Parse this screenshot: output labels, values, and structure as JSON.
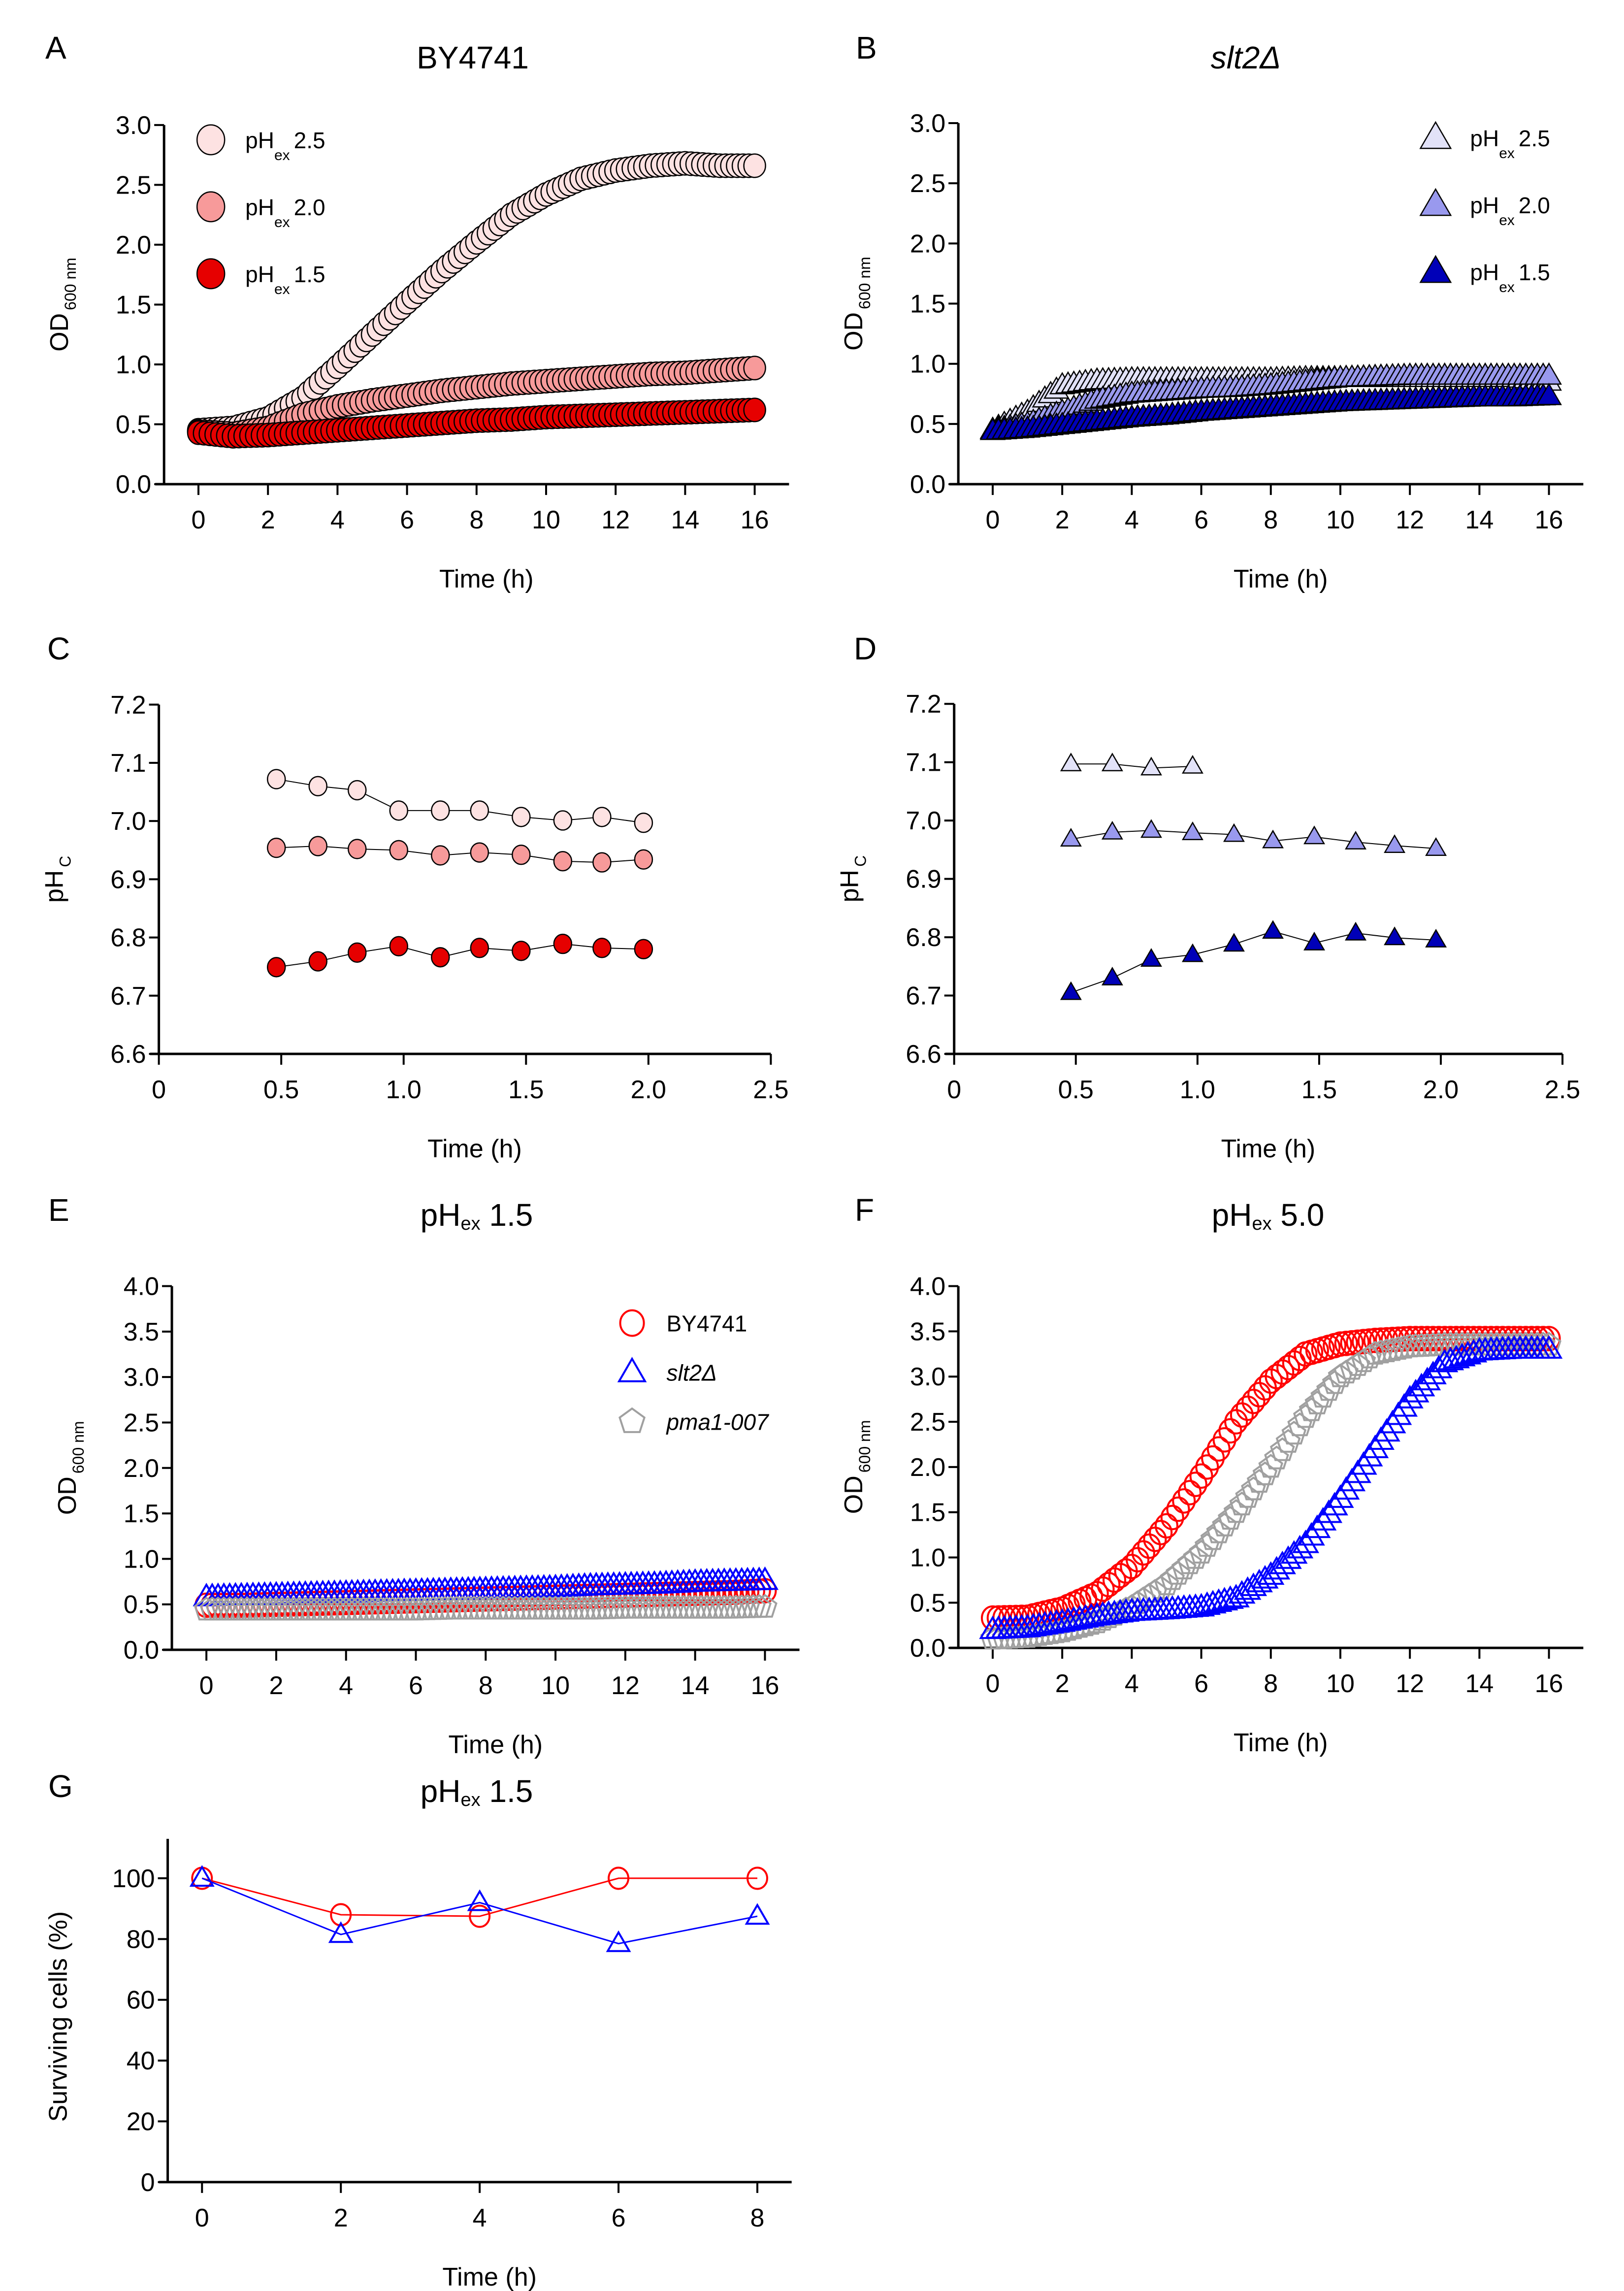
{
  "figure": {
    "panels": [
      "A",
      "B",
      "C",
      "D",
      "E",
      "F",
      "G"
    ]
  },
  "chart_data": [
    {
      "id": "A",
      "panel_letter": "A",
      "type": "scatter",
      "title": "BY4741",
      "title_italic": false,
      "xlabel": "Time (h)",
      "ylabel": "OD",
      "ylabel_sub": "600 nm",
      "xlim": [
        -1,
        18
      ],
      "ylim": [
        0,
        3.0
      ],
      "xticks": [
        0,
        2,
        4,
        6,
        8,
        10,
        12,
        14,
        16
      ],
      "xtick_labels": [
        "0",
        "2",
        "4",
        "6",
        "8",
        "10",
        "12",
        "14",
        "16"
      ],
      "yticks": [
        0,
        0.5,
        1.0,
        1.5,
        2.0,
        2.5,
        3.0
      ],
      "ytick_labels": [
        "0.0",
        "0.5",
        "1.0",
        "1.5",
        "2.0",
        "2.5",
        "3.0"
      ],
      "marker": "circle",
      "dense": true,
      "legend_position": "top-left",
      "x": [
        0,
        1,
        2,
        3,
        4,
        5,
        6,
        7,
        8,
        9,
        10,
        11,
        12,
        13,
        14,
        15,
        16
      ],
      "series": [
        {
          "name": "pHex 2.5",
          "label_main": "pH",
          "label_sub": "ex",
          "label_value": "2.5",
          "fill": "#fde2e2",
          "stroke": "#000000",
          "values": [
            0.45,
            0.47,
            0.55,
            0.72,
            0.98,
            1.25,
            1.52,
            1.78,
            2.02,
            2.25,
            2.42,
            2.55,
            2.62,
            2.66,
            2.68,
            2.66,
            2.66
          ]
        },
        {
          "name": "pHex 2.0",
          "label_main": "pH",
          "label_sub": "ex",
          "label_value": "2.0",
          "fill": "#f79a9a",
          "stroke": "#000000",
          "values": [
            0.44,
            0.42,
            0.47,
            0.58,
            0.65,
            0.7,
            0.74,
            0.78,
            0.81,
            0.84,
            0.86,
            0.88,
            0.9,
            0.92,
            0.93,
            0.95,
            0.97
          ]
        },
        {
          "name": "pHex 1.5",
          "label_main": "pH",
          "label_sub": "ex",
          "label_value": "1.5",
          "fill": "#e60000",
          "stroke": "#000000",
          "values": [
            0.43,
            0.4,
            0.41,
            0.43,
            0.45,
            0.47,
            0.49,
            0.51,
            0.53,
            0.54,
            0.56,
            0.57,
            0.58,
            0.59,
            0.6,
            0.61,
            0.62
          ]
        }
      ]
    },
    {
      "id": "B",
      "panel_letter": "B",
      "type": "scatter",
      "title": "slt2Δ",
      "title_italic": true,
      "xlabel": "Time (h)",
      "ylabel": "OD",
      "ylabel_sub": "600 nm",
      "xlim": [
        -1,
        18
      ],
      "ylim": [
        0,
        3.0
      ],
      "xticks": [
        0,
        2,
        4,
        6,
        8,
        10,
        12,
        14,
        16
      ],
      "xtick_labels": [
        "0",
        "2",
        "4",
        "6",
        "8",
        "10",
        "12",
        "14",
        "16"
      ],
      "yticks": [
        0,
        0.5,
        1.0,
        1.5,
        2.0,
        2.5,
        3.0
      ],
      "ytick_labels": [
        "0.0",
        "0.5",
        "1.0",
        "1.5",
        "2.0",
        "2.5",
        "3.0"
      ],
      "marker": "triangle",
      "dense": true,
      "legend_position": "top-right",
      "x": [
        0,
        1,
        2,
        3,
        4,
        5,
        6,
        7,
        8,
        9,
        10,
        11,
        12,
        13,
        14,
        15,
        16
      ],
      "series": [
        {
          "name": "pHex 2.5",
          "label_main": "pH",
          "label_sub": "ex",
          "label_value": "2.5",
          "fill": "#e2e2f8",
          "stroke": "#000000",
          "values": [
            0.45,
            0.6,
            0.82,
            0.86,
            0.87,
            0.87,
            0.87,
            0.87,
            0.87,
            0.88,
            0.88,
            0.88,
            0.88,
            0.88,
            0.88,
            0.88,
            0.85
          ]
        },
        {
          "name": "pHex 2.0",
          "label_main": "pH",
          "label_sub": "ex",
          "label_value": "2.0",
          "fill": "#9999ee",
          "stroke": "#000000",
          "values": [
            0.45,
            0.5,
            0.6,
            0.7,
            0.75,
            0.77,
            0.79,
            0.8,
            0.82,
            0.85,
            0.88,
            0.89,
            0.9,
            0.9,
            0.9,
            0.9,
            0.9
          ]
        },
        {
          "name": "pHex 1.5",
          "label_main": "pH",
          "label_sub": "ex",
          "label_value": "1.5",
          "fill": "#0000b8",
          "stroke": "#000000",
          "values": [
            0.44,
            0.46,
            0.49,
            0.52,
            0.55,
            0.57,
            0.6,
            0.62,
            0.64,
            0.66,
            0.68,
            0.69,
            0.7,
            0.71,
            0.72,
            0.72,
            0.73
          ]
        }
      ]
    },
    {
      "id": "C",
      "panel_letter": "C",
      "type": "line",
      "title": "",
      "xlabel": "Time (h)",
      "ylabel": "pH",
      "ylabel_sub": "C",
      "xlim": [
        0,
        2.5
      ],
      "ylim": [
        6.6,
        7.2
      ],
      "xticks": [
        0,
        0.5,
        1.0,
        1.5,
        2.0,
        2.5
      ],
      "xtick_labels": [
        "0",
        "0.5",
        "1.0",
        "1.5",
        "2.0",
        "2.5"
      ],
      "yticks": [
        6.6,
        6.7,
        6.8,
        6.9,
        7.0,
        7.1,
        7.2
      ],
      "ytick_labels": [
        "6.6",
        "6.7",
        "6.8",
        "6.9",
        "7.0",
        "7.1",
        "7.2"
      ],
      "marker": "circle",
      "dense": false,
      "x": [
        0.48,
        0.65,
        0.81,
        0.98,
        1.15,
        1.31,
        1.48,
        1.65,
        1.81,
        1.98
      ],
      "series": [
        {
          "name": "pHex 2.5",
          "fill": "#fde2e2",
          "stroke": "#000000",
          "values": [
            7.072,
            7.06,
            7.053,
            7.018,
            7.018,
            7.018,
            7.007,
            7.001,
            7.007,
            6.997
          ]
        },
        {
          "name": "pHex 2.0",
          "fill": "#f79a9a",
          "stroke": "#000000",
          "values": [
            6.954,
            6.957,
            6.952,
            6.95,
            6.941,
            6.946,
            6.942,
            6.931,
            6.929,
            6.934
          ]
        },
        {
          "name": "pHex 1.5",
          "fill": "#e60000",
          "stroke": "#000000",
          "values": [
            6.749,
            6.759,
            6.774,
            6.785,
            6.766,
            6.782,
            6.777,
            6.789,
            6.782,
            6.78
          ]
        }
      ]
    },
    {
      "id": "D",
      "panel_letter": "D",
      "type": "line",
      "title": "",
      "xlabel": "Time (h)",
      "ylabel": "pH",
      "ylabel_sub": "C",
      "xlim": [
        0,
        2.5
      ],
      "ylim": [
        6.6,
        7.2
      ],
      "xticks": [
        0,
        0.5,
        1.0,
        1.5,
        2.0,
        2.5
      ],
      "xtick_labels": [
        "0",
        "0.5",
        "1.0",
        "1.5",
        "2.0",
        "2.5"
      ],
      "yticks": [
        6.6,
        6.7,
        6.8,
        6.9,
        7.0,
        7.1,
        7.2
      ],
      "ytick_labels": [
        "6.6",
        "6.7",
        "6.8",
        "6.9",
        "7.0",
        "7.1",
        "7.2"
      ],
      "marker": "triangle",
      "dense": false,
      "x": [
        0.48,
        0.65,
        0.81,
        0.98,
        1.15,
        1.31,
        1.48,
        1.65,
        1.81,
        1.98
      ],
      "series": [
        {
          "name": "pHex 2.5",
          "fill": "#e2e2f8",
          "stroke": "#000000",
          "values": [
            7.097,
            7.097,
            7.09,
            7.093,
            null,
            null,
            null,
            null,
            null,
            null
          ]
        },
        {
          "name": "pHex 2.0",
          "fill": "#9999ee",
          "stroke": "#000000",
          "values": [
            6.968,
            6.98,
            6.983,
            6.979,
            6.976,
            6.965,
            6.972,
            6.963,
            6.957,
            6.952
          ]
        },
        {
          "name": "pHex 1.5",
          "fill": "#0000b8",
          "stroke": "#000000",
          "values": [
            6.705,
            6.73,
            6.762,
            6.77,
            6.788,
            6.81,
            6.79,
            6.807,
            6.799,
            6.795
          ]
        }
      ]
    },
    {
      "id": "E",
      "panel_letter": "E",
      "type": "scatter",
      "title": "pH",
      "title_sub": "ex",
      "title_value": " 1.5",
      "xlabel": "Time (h)",
      "ylabel": "OD",
      "ylabel_sub": "600 nm",
      "xlim": [
        -1,
        18
      ],
      "ylim": [
        0,
        4.0
      ],
      "xticks": [
        0,
        2,
        4,
        6,
        8,
        10,
        12,
        14,
        16
      ],
      "xtick_labels": [
        "0",
        "2",
        "4",
        "6",
        "8",
        "10",
        "12",
        "14",
        "16"
      ],
      "yticks": [
        0,
        0.5,
        1.0,
        1.5,
        2.0,
        2.5,
        3.0,
        3.5,
        4.0
      ],
      "ytick_labels": [
        "0.0",
        "0.5",
        "1.0",
        "1.5",
        "2.0",
        "2.5",
        "3.0",
        "3.5",
        "4.0"
      ],
      "dense": true,
      "open_markers": true,
      "legend_position": "top-right",
      "x": [
        0,
        1,
        2,
        3,
        4,
        5,
        6,
        7,
        8,
        9,
        10,
        11,
        12,
        13,
        14,
        15,
        16
      ],
      "series": [
        {
          "name": "BY4741",
          "italic": false,
          "marker": "circle",
          "fill": "none",
          "stroke": "#ff0000",
          "values": [
            0.49,
            0.49,
            0.5,
            0.51,
            0.52,
            0.53,
            0.54,
            0.55,
            0.56,
            0.57,
            0.58,
            0.59,
            0.6,
            0.61,
            0.62,
            0.63,
            0.65
          ]
        },
        {
          "name": "slt2Δ",
          "italic": true,
          "marker": "triangle",
          "fill": "none",
          "stroke": "#0000ff",
          "values": [
            0.58,
            0.59,
            0.6,
            0.61,
            0.62,
            0.63,
            0.64,
            0.65,
            0.66,
            0.67,
            0.68,
            0.7,
            0.71,
            0.72,
            0.74,
            0.75,
            0.76
          ]
        },
        {
          "name": "pma1-007",
          "italic": true,
          "marker": "pentagon",
          "fill": "none",
          "stroke": "#a0a0a0",
          "values": [
            0.44,
            0.44,
            0.44,
            0.44,
            0.44,
            0.44,
            0.44,
            0.45,
            0.45,
            0.45,
            0.45,
            0.45,
            0.46,
            0.46,
            0.46,
            0.46,
            0.47
          ]
        }
      ]
    },
    {
      "id": "F",
      "panel_letter": "F",
      "type": "scatter",
      "title": "pH",
      "title_sub": "ex",
      "title_value": " 5.0",
      "xlabel": "Time (h)",
      "ylabel": "OD",
      "ylabel_sub": "600 nm",
      "xlim": [
        -1,
        18
      ],
      "ylim": [
        0,
        4.0
      ],
      "xticks": [
        0,
        2,
        4,
        6,
        8,
        10,
        12,
        14,
        16
      ],
      "xtick_labels": [
        "0",
        "2",
        "4",
        "6",
        "8",
        "10",
        "12",
        "14",
        "16"
      ],
      "yticks": [
        0,
        0.5,
        1.0,
        1.5,
        2.0,
        2.5,
        3.0,
        3.5,
        4.0
      ],
      "ytick_labels": [
        "0.0",
        "0.5",
        "1.0",
        "1.5",
        "2.0",
        "2.5",
        "3.0",
        "3.5",
        "4.0"
      ],
      "dense": true,
      "open_markers": true,
      "x": [
        0,
        1,
        2,
        3,
        4,
        5,
        6,
        7,
        8,
        9,
        10,
        11,
        12,
        13,
        14,
        15,
        16
      ],
      "series": [
        {
          "name": "BY4741",
          "marker": "circle",
          "fill": "none",
          "stroke": "#ff0000",
          "values": [
            0.33,
            0.34,
            0.43,
            0.6,
            0.9,
            1.35,
            1.9,
            2.5,
            2.95,
            3.25,
            3.36,
            3.4,
            3.42,
            3.42,
            3.42,
            3.42,
            3.42
          ]
        },
        {
          "name": "pma1-007",
          "marker": "pentagon",
          "fill": "none",
          "stroke": "#a0a0a0",
          "values": [
            0.1,
            0.12,
            0.18,
            0.28,
            0.45,
            0.7,
            1.05,
            1.5,
            2.0,
            2.55,
            3.0,
            3.25,
            3.33,
            3.35,
            3.35,
            3.35,
            3.35
          ]
        },
        {
          "name": "slt2Δ",
          "marker": "triangle",
          "fill": "none",
          "stroke": "#0000ff",
          "values": [
            0.2,
            0.22,
            0.28,
            0.35,
            0.4,
            0.42,
            0.45,
            0.55,
            0.8,
            1.15,
            1.65,
            2.2,
            2.75,
            3.15,
            3.28,
            3.3,
            3.3
          ]
        }
      ]
    },
    {
      "id": "G",
      "panel_letter": "G",
      "type": "line",
      "title": "pH",
      "title_sub": "ex",
      "title_value": " 1.5",
      "xlabel": "Time (h)",
      "ylabel": "Surviving cells (%)",
      "ylabel_sub": "",
      "xlim": [
        -0.5,
        8.5
      ],
      "ylim": [
        0,
        109
      ],
      "xticks": [
        0,
        2,
        4,
        6,
        8
      ],
      "xtick_labels": [
        "0",
        "2",
        "4",
        "6",
        "8"
      ],
      "yticks": [
        0,
        20,
        40,
        60,
        80,
        100
      ],
      "ytick_labels": [
        "0",
        "20",
        "40",
        "60",
        "80",
        "100"
      ],
      "dense": false,
      "open_markers": true,
      "x": [
        0,
        2,
        4,
        6,
        8
      ],
      "series": [
        {
          "name": "BY4741",
          "marker": "circle",
          "fill": "none",
          "stroke": "#ff0000",
          "values": [
            100,
            88,
            87.5,
            100,
            100
          ]
        },
        {
          "name": "slt2Δ",
          "marker": "triangle",
          "fill": "none",
          "stroke": "#0000ff",
          "values": [
            100,
            81.5,
            92,
            78.5,
            87.5
          ]
        }
      ]
    }
  ]
}
